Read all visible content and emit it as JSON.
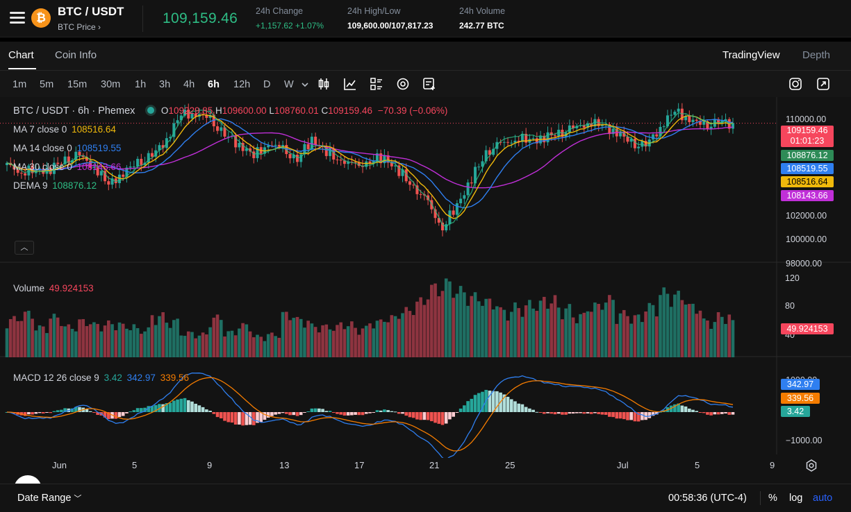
{
  "header": {
    "pair": "BTC / USDT",
    "subtitle": "BTC Price ›",
    "coin_symbol": "₿",
    "last_price": "109,159.46",
    "stats": [
      {
        "label": "24h Change",
        "value": "+1,157.62 +1.07%",
        "color": "green"
      },
      {
        "label": "24h High/Low",
        "value": "109,600.00/107,817.23",
        "color": "white"
      },
      {
        "label": "24h Volume",
        "value": "242.77 BTC",
        "color": "white"
      }
    ]
  },
  "tabs": {
    "chart": "Chart",
    "coin_info": "Coin Info",
    "tradingview": "TradingView",
    "depth": "Depth"
  },
  "timeframes": [
    "1m",
    "5m",
    "15m",
    "30m",
    "1h",
    "3h",
    "4h",
    "6h",
    "12h",
    "D",
    "W"
  ],
  "active_timeframe": "6h",
  "tool_icons": [
    "candles-icon",
    "indicators-icon",
    "templates-icon",
    "settings-icon",
    "add-alert-icon"
  ],
  "legend": {
    "title": "BTC / USDT · 6h · Phemex",
    "open_label": "O",
    "open": "109229.85",
    "high_label": "H",
    "high": "109600.00",
    "low_label": "L",
    "low": "108760.01",
    "close_label": "C",
    "close": "109159.46",
    "change": "−70.39 (−0.06%)",
    "ma7_label": "MA 7 close 0",
    "ma7": "108516.64",
    "ma14_label": "MA 14 close 0",
    "ma14": "108519.55",
    "ma30_label": "MA 30 close 0",
    "ma30": "108143.66",
    "dema_label": "DEMA 9",
    "dema": "108876.12"
  },
  "price_axis": [
    "110000.00",
    "102000.00",
    "100000.00",
    "98000.00"
  ],
  "price_tags": {
    "last": "109159.46",
    "countdown": "01:01:23",
    "dema": "108876.12",
    "ma14": "108519.55",
    "ma7": "108516.64",
    "ma30": "108143.66"
  },
  "volume": {
    "label": "Volume",
    "value": "49.924153",
    "axis": [
      "120",
      "80",
      "40"
    ],
    "tag": "49.924153"
  },
  "macd": {
    "label": "MACD 12 26 close 9",
    "hist": "3.42",
    "macd": "342.97",
    "signal": "339.56",
    "axis_top": "1000.00",
    "axis_bottom": "−1000.00"
  },
  "x_axis": [
    "Jun",
    "5",
    "9",
    "13",
    "17",
    "21",
    "25",
    "Jul",
    "5",
    "9"
  ],
  "footer": {
    "date_range": "Date Range",
    "clock": "00:58:36 (UTC-4)",
    "percent": "%",
    "log": "log",
    "auto": "auto"
  },
  "colors": {
    "up": "#26a69a",
    "down": "#ef5350",
    "ma7": "#f0b90b",
    "ma14": "#2f7ff0",
    "ma30": "#c02fd8",
    "dema": "#2ebd85",
    "macd": "#2f7ff0",
    "signal": "#f57c00",
    "accent": "#2962ff"
  },
  "chart_data": {
    "type": "candlestick",
    "timeframe": "6h",
    "x_labels": [
      "Jun",
      "5",
      "9",
      "13",
      "17",
      "21",
      "25",
      "Jul",
      "5",
      "9"
    ],
    "anchor_closes": [
      105400,
      104800,
      104900,
      105100,
      105800,
      106200,
      105300,
      103600,
      104800,
      105500,
      106200,
      107800,
      109900,
      110100,
      109400,
      108100,
      107300,
      106200,
      107400,
      106700,
      105900,
      107800,
      106500,
      105900,
      105200,
      105800,
      106100,
      104800,
      103500,
      101900,
      99800,
      101800,
      104200,
      106500,
      107200,
      107800,
      107600,
      107900,
      108200,
      108600,
      109300,
      108900,
      108400,
      107300,
      107100,
      108900,
      110200,
      109600,
      108800,
      109300,
      109159.46
    ],
    "volume_values": [
      55,
      63,
      43,
      58,
      44,
      52,
      47,
      49,
      45,
      40,
      60,
      52,
      35,
      33,
      57,
      36,
      46,
      30,
      33,
      62,
      54,
      45,
      44,
      48,
      42,
      51,
      57,
      67,
      80,
      100,
      106,
      95,
      87,
      80,
      67,
      73,
      77,
      83,
      71,
      60,
      74,
      83,
      63,
      58,
      73,
      93,
      89,
      73,
      52,
      60,
      49.92
    ],
    "price_ylim": [
      97000,
      111000
    ],
    "volume_ylim": [
      0,
      120
    ],
    "macd_ylim": [
      -1200,
      1200
    ]
  }
}
